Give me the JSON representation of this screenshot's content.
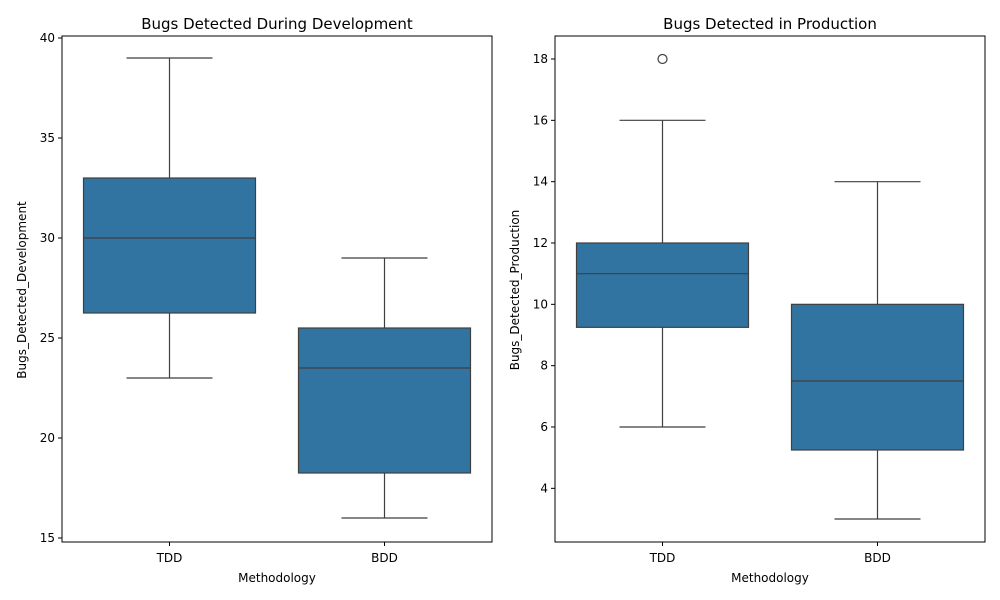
{
  "chart_data": [
    {
      "type": "box",
      "title": "Bugs Detected During Development",
      "xlabel": "Methodology",
      "ylabel": "Bugs_Detected_Development",
      "categories": [
        "TDD",
        "BDD"
      ],
      "ylim": [
        14.8,
        40.1
      ],
      "yticks": [
        15,
        20,
        25,
        30,
        35,
        40
      ],
      "boxes": [
        {
          "category": "TDD",
          "whislo": 23,
          "q1": 26.25,
          "med": 30,
          "q3": 33,
          "whishi": 39,
          "fliers": []
        },
        {
          "category": "BDD",
          "whislo": 16,
          "q1": 18.25,
          "med": 23.5,
          "q3": 25.5,
          "whishi": 29,
          "fliers": []
        }
      ],
      "color": "#3274a1"
    },
    {
      "type": "box",
      "title": "Bugs Detected in Production",
      "xlabel": "Methodology",
      "ylabel": "Bugs_Detected_Production",
      "categories": [
        "TDD",
        "BDD"
      ],
      "ylim": [
        2.25,
        18.75
      ],
      "yticks": [
        4,
        6,
        8,
        10,
        12,
        14,
        16,
        18
      ],
      "boxes": [
        {
          "category": "TDD",
          "whislo": 6,
          "q1": 9.25,
          "med": 11,
          "q3": 12,
          "whishi": 16,
          "fliers": [
            18
          ]
        },
        {
          "category": "BDD",
          "whislo": 3,
          "q1": 5.25,
          "med": 7.5,
          "q3": 10,
          "whishi": 14,
          "fliers": []
        }
      ],
      "color": "#3274a1"
    }
  ]
}
